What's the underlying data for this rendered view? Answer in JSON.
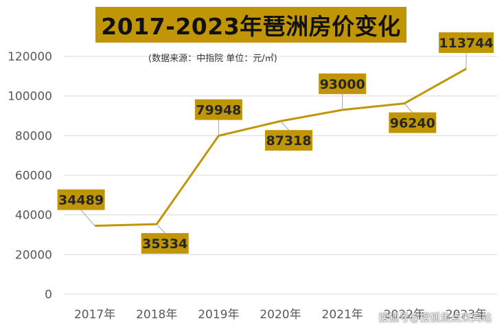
{
  "chart_data": {
    "type": "line",
    "title": "2017-2023年琶洲房价变化",
    "subtitle": "(数据来源：中指院   单位：元/㎡)",
    "categories": [
      "2017年",
      "2018年",
      "2019年",
      "2020年",
      "2021年",
      "2022年",
      "2023年"
    ],
    "series": [
      {
        "values": [
          34489,
          35334,
          79948,
          87318,
          93000,
          96240,
          113744
        ]
      }
    ],
    "data_labels": [
      "34489",
      "35334",
      "79948",
      "87318",
      "93000",
      "96240",
      "113744"
    ],
    "y_ticks": [
      "0",
      "20000",
      "40000",
      "60000",
      "80000",
      "100000",
      "120000"
    ],
    "ylim": [
      0,
      120000
    ],
    "grid": true,
    "legend": "none",
    "colors": {
      "line": "#c09506",
      "label_box": "#c09506",
      "grid": "#d9d9d9",
      "axis_text": "#595959"
    }
  },
  "watermark": "搜狐号@搜狐焦点来宾站"
}
